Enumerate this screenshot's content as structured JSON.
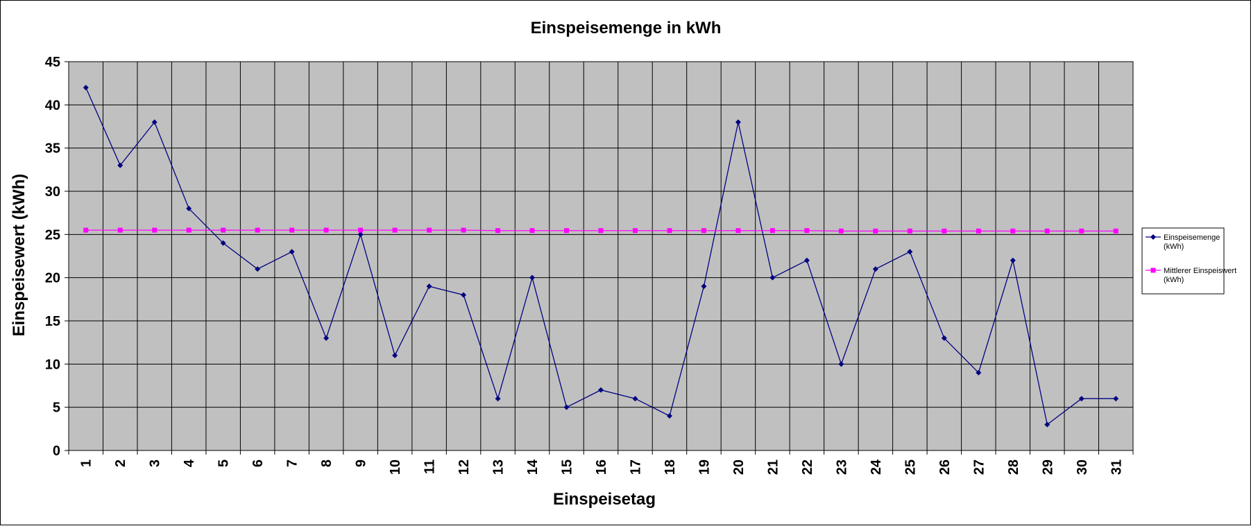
{
  "chart_data": {
    "type": "line",
    "title": "Einspeisemenge in kWh",
    "xlabel": "Einspeisetag",
    "ylabel": "Einspeisewert  (kWh)",
    "categories": [
      "1",
      "2",
      "3",
      "4",
      "5",
      "6",
      "7",
      "8",
      "9",
      "10",
      "11",
      "12",
      "13",
      "14",
      "15",
      "16",
      "17",
      "18",
      "19",
      "20",
      "21",
      "22",
      "23",
      "24",
      "25",
      "26",
      "27",
      "28",
      "29",
      "30",
      "31"
    ],
    "ylim": [
      0,
      45
    ],
    "yticks": [
      0,
      5,
      10,
      15,
      20,
      25,
      30,
      35,
      40,
      45
    ],
    "grid": true,
    "legend_position": "right",
    "plot_background": "#c0c0c0",
    "series": [
      {
        "name": "Einspeisemenge (kWh)",
        "legend_lines": [
          "Einspeisemenge",
          "(kWh)"
        ],
        "color": "#000080",
        "marker": "diamond",
        "values": [
          42,
          33,
          38,
          28,
          24,
          21,
          23,
          13,
          25,
          11,
          19,
          18,
          6,
          20,
          5,
          7,
          6,
          4,
          19,
          38,
          20,
          22,
          10,
          21,
          23,
          13,
          9,
          22,
          3,
          6,
          6
        ]
      },
      {
        "name": "Mittlerer Einspeiswert (kWh)",
        "legend_lines": [
          "Mittlerer Einspeiswert",
          "(kWh)"
        ],
        "color": "#ff00ff",
        "marker": "square",
        "values": [
          25.5,
          25.5,
          25.5,
          25.5,
          25.5,
          25.5,
          25.5,
          25.5,
          25.5,
          25.5,
          25.5,
          25.5,
          25.45,
          25.45,
          25.45,
          25.45,
          25.45,
          25.45,
          25.45,
          25.45,
          25.45,
          25.45,
          25.4,
          25.4,
          25.4,
          25.4,
          25.4,
          25.4,
          25.4,
          25.4,
          25.4
        ]
      }
    ]
  }
}
